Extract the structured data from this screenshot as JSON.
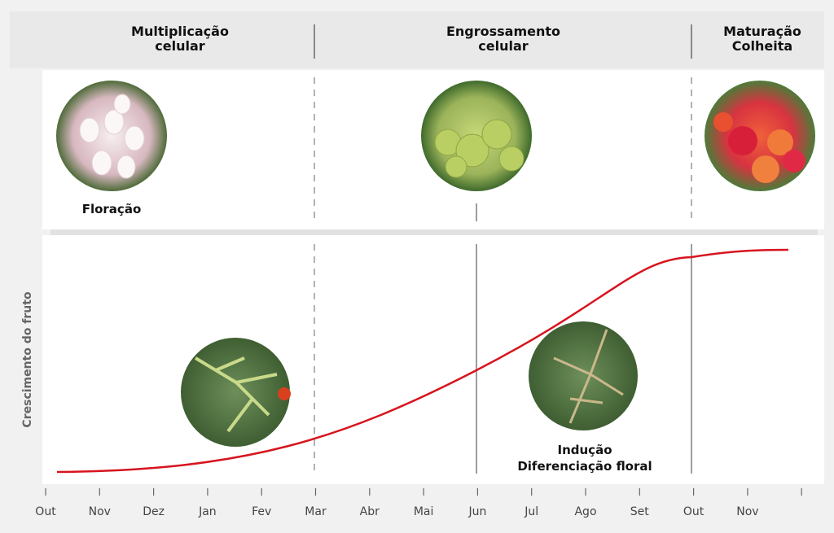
{
  "header": {
    "phases": [
      {
        "lines": [
          "Multiplicação",
          "celular"
        ]
      },
      {
        "lines": [
          "Engrossamento",
          "celular"
        ]
      },
      {
        "lines": [
          "Maturação",
          "Colheita"
        ]
      }
    ]
  },
  "photos": {
    "flowering": "Floração",
    "induction": [
      "Indução",
      "Diferenciação floral"
    ]
  },
  "y_axis_label": "Crescimento do fruto",
  "months": [
    "Out",
    "Nov",
    "Dez",
    "Jan",
    "Fev",
    "Mar",
    "Abr",
    "Mai",
    "Jun",
    "Jul",
    "Ago",
    "Set",
    "Out",
    "Nov"
  ]
}
